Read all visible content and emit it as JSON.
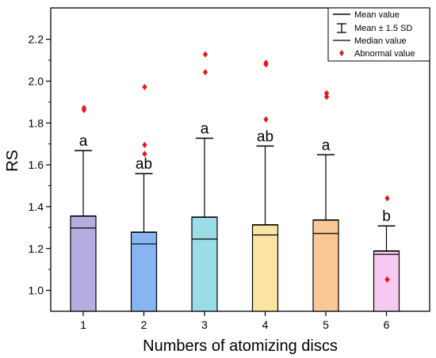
{
  "chart_data": {
    "type": "box",
    "title": "",
    "xlabel": "Numbers of atomizing discs",
    "ylabel": "RS",
    "ylim": [
      0.9,
      2.35
    ],
    "yticks": [
      "1.0",
      "1.2",
      "1.4",
      "1.6",
      "1.8",
      "2.0",
      "2.2"
    ],
    "yticks_values": [
      1.0,
      1.2,
      1.4,
      1.6,
      1.8,
      2.0,
      2.2
    ],
    "categories": [
      "1",
      "2",
      "3",
      "4",
      "5",
      "6"
    ],
    "series": [
      {
        "name": "1",
        "color": "#b4aee0",
        "box_top": 1.355,
        "box_bottom": 0.9,
        "mean": 1.355,
        "median": 1.298,
        "whisker_top": 1.668,
        "letter": "a",
        "outliers": [
          1.862,
          1.872
        ]
      },
      {
        "name": "2",
        "color": "#86b5f1",
        "box_top": 1.278,
        "box_bottom": 0.9,
        "mean": 1.278,
        "median": 1.222,
        "whisker_top": 1.558,
        "letter": "ab",
        "outliers": [
          1.972,
          1.695,
          1.652
        ]
      },
      {
        "name": "3",
        "color": "#9adde6",
        "box_top": 1.35,
        "box_bottom": 0.9,
        "mean": 1.35,
        "median": 1.245,
        "whisker_top": 1.727,
        "letter": "a",
        "outliers": [
          2.128,
          2.043
        ]
      },
      {
        "name": "4",
        "color": "#fbe3a3",
        "box_top": 1.313,
        "box_bottom": 0.9,
        "mean": 1.313,
        "median": 1.265,
        "whisker_top": 1.69,
        "letter": "ab",
        "outliers": [
          2.08,
          2.088,
          1.817
        ]
      },
      {
        "name": "5",
        "color": "#f9c896",
        "box_top": 1.336,
        "box_bottom": 0.9,
        "mean": 1.336,
        "median": 1.272,
        "whisker_top": 1.648,
        "letter": "a",
        "outliers": [
          1.925,
          1.942
        ]
      },
      {
        "name": "6",
        "color": "#f7c8f1",
        "box_top": 1.188,
        "box_bottom": 0.9,
        "mean": 1.188,
        "median": 1.172,
        "whisker_top": 1.308,
        "letter": "b",
        "outliers": [
          1.44,
          1.052
        ]
      }
    ],
    "legend": {
      "position": "top-right",
      "items": [
        {
          "symbol": "mean-line",
          "label": "Mean value"
        },
        {
          "symbol": "sd-bar",
          "label": "Mean ± 1.5 SD"
        },
        {
          "symbol": "median-line",
          "label": "Median value"
        },
        {
          "symbol": "diamond",
          "label": "Abnormal value"
        }
      ]
    },
    "outlier_color": "#e21a1a"
  }
}
